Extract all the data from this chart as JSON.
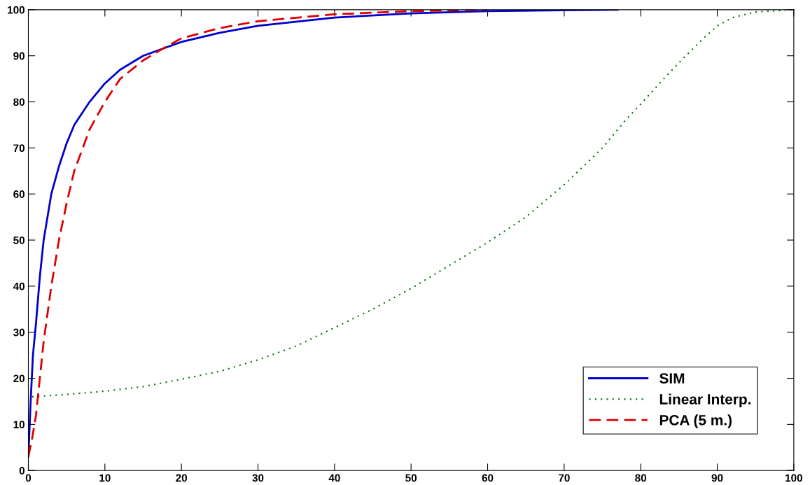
{
  "chart_data": {
    "type": "line",
    "xlim": [
      0,
      100
    ],
    "ylim": [
      0,
      100
    ],
    "xticks": [
      0,
      10,
      20,
      30,
      40,
      50,
      60,
      70,
      80,
      90,
      100
    ],
    "yticks": [
      0,
      10,
      20,
      30,
      40,
      50,
      60,
      70,
      80,
      90,
      100
    ],
    "grid": false,
    "legend": "bottom right",
    "series": [
      {
        "name": "SIM",
        "color": "#0000cc",
        "line_style": "solid",
        "x": [
          0,
          0.3,
          0.6,
          1,
          1.5,
          2,
          3,
          4,
          5,
          6,
          8,
          10,
          12,
          15,
          20,
          25,
          30,
          40,
          50,
          60,
          70,
          77
        ],
        "values": [
          3,
          15,
          25,
          32,
          42,
          50,
          60,
          66,
          71,
          75,
          80,
          84,
          87,
          90,
          93,
          95,
          96.5,
          98.3,
          99.2,
          99.7,
          99.9,
          100
        ]
      },
      {
        "name": "Linear Interp.",
        "color": "#007700",
        "line_style": "dotted",
        "x": [
          0.5,
          5,
          10,
          15,
          20,
          25,
          30,
          35,
          40,
          45,
          50,
          55,
          60,
          65,
          70,
          75,
          78,
          80,
          83,
          85,
          88,
          90,
          92,
          95,
          100
        ],
        "values": [
          16,
          16.5,
          17.2,
          18.2,
          19.8,
          21.5,
          24,
          27,
          31,
          35,
          39.5,
          44.5,
          49.5,
          55,
          62,
          70,
          76,
          79.5,
          85,
          88.5,
          93.5,
          96.5,
          98.3,
          99.5,
          100
        ]
      },
      {
        "name": "PCA (5 m.)",
        "color": "#dd0000",
        "line_style": "dashed",
        "x": [
          0,
          0.5,
          1,
          1.5,
          2,
          3,
          4,
          5,
          6,
          8,
          10,
          12,
          15,
          17,
          20,
          25,
          30,
          40,
          50,
          60
        ],
        "values": [
          3,
          7,
          12,
          20,
          28,
          40,
          50,
          58,
          65,
          74,
          80,
          85,
          89,
          91,
          93.8,
          96,
          97.5,
          99,
          99.7,
          100
        ]
      }
    ]
  }
}
